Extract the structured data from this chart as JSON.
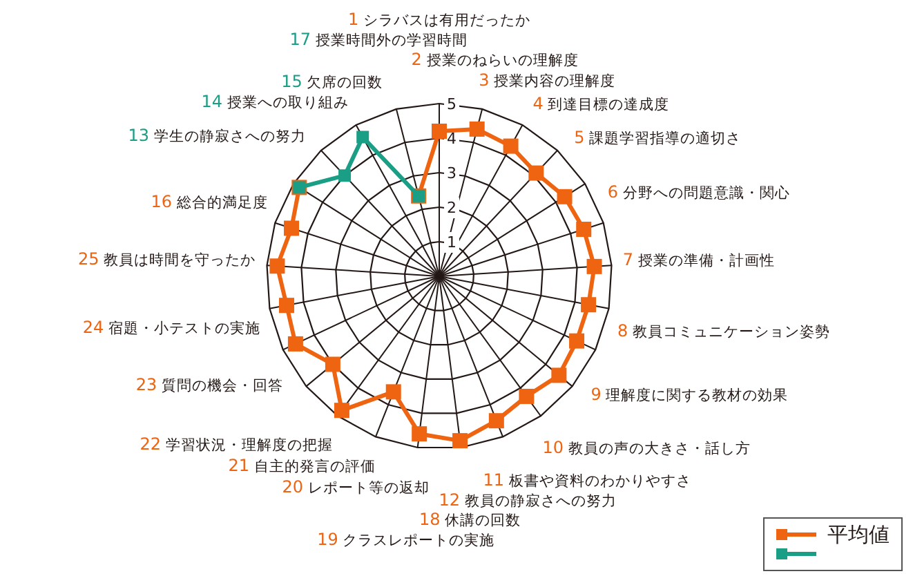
{
  "chart_data": {
    "type": "radar",
    "categories": [
      "1 シラバスは有用だったか",
      "2 授業のねらいの理解度",
      "3 授業内容の理解度",
      "4 到達目標の達成度",
      "5 課題学習指導の適切さ",
      "6 分野への問題意識・関心",
      "7 授業の準備・計画性",
      "8 教員コミュニケーション姿勢",
      "9 理解度に関する教材の効果",
      "10 教員の声の大きさ・話し方",
      "11 板書や資料のわかりやすさ",
      "12 教員の静寂さへの努力",
      "18 休講の回数",
      "19 クラスレポートの実施",
      "20 レポート等の返却",
      "21 自主的発言の評価",
      "22 学習状況・理解度の把握",
      "23 質問の機会・回答",
      "24 宿題・小テストの実施",
      "25 教員は時間を守ったか",
      "16 総合的満足度",
      "13 学生の静寂さへの努力",
      "14 授業への取り組み",
      "15 欠席の回数",
      "17 授業時間外の学習時間"
    ],
    "colors": [
      "#ee6411",
      "#ee6411",
      "#ee6411",
      "#ee6411",
      "#ee6411",
      "#ee6411",
      "#ee6411",
      "#ee6411",
      "#ee6411",
      "#ee6411",
      "#ee6411",
      "#ee6411",
      "#ee6411",
      "#ee6411",
      "#ee6411",
      "#ee6411",
      "#ee6411",
      "#ee6411",
      "#ee6411",
      "#ee6411",
      "#ee6411",
      "#1a9e85",
      "#1a9e85",
      "#1a9e85",
      "#1a9e85"
    ],
    "ylim": [
      0,
      5
    ],
    "yticks": [
      1,
      2,
      3,
      4,
      5
    ],
    "grid": true,
    "marker": "square",
    "legend": "bottom right",
    "series": [
      {
        "name": "平均値",
        "color": "#ee6411",
        "values": [
          4.2,
          4.4,
          4.3,
          4.1,
          4.3,
          4.4,
          4.5,
          4.4,
          4.4,
          4.5,
          4.3,
          4.5,
          4.8,
          4.6,
          3.6,
          4.8,
          4.0,
          4.6,
          4.5,
          4.7,
          4.5,
          4.8,
          null,
          null,
          2.4
        ]
      },
      {
        "color": "#1a9e85",
        "values": [
          null,
          null,
          null,
          null,
          null,
          null,
          null,
          null,
          null,
          null,
          null,
          null,
          null,
          null,
          null,
          null,
          null,
          null,
          null,
          null,
          null,
          4.8,
          4.0,
          4.6,
          2.4
        ]
      }
    ]
  }
}
